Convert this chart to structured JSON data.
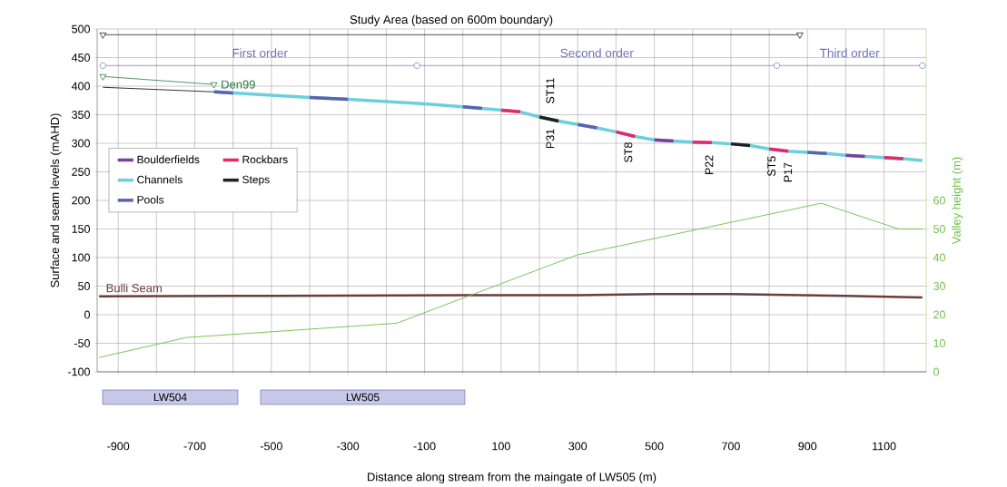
{
  "chart_data": {
    "type": "line",
    "xlabel": "Distance along stream from the maingate of LW505 (m)",
    "ylabel": "Surface and seam levels (mAHD)",
    "y2label": "Valley height (m)",
    "x": [
      -650,
      -600,
      -500,
      -400,
      -300,
      -200,
      -100,
      0,
      50,
      100,
      150,
      200,
      250,
      300,
      350,
      400,
      450,
      500,
      550,
      600,
      650,
      700,
      750,
      800,
      850,
      900,
      950,
      1000,
      1050,
      1100,
      1150,
      1200
    ],
    "series": [
      {
        "name": "Boulderfields",
        "color": "#7b3f9e",
        "values": [
          null,
          null,
          null,
          null,
          null,
          null,
          null,
          null,
          null,
          null,
          null,
          null,
          null,
          null,
          null,
          null,
          null,
          306,
          304,
          null,
          null,
          null,
          null,
          null,
          null,
          null,
          null,
          279,
          277,
          null,
          null,
          null
        ]
      },
      {
        "name": "Rockbars",
        "color": "#e8266b",
        "values": [
          null,
          null,
          null,
          null,
          null,
          null,
          null,
          null,
          null,
          358,
          355,
          null,
          null,
          null,
          null,
          320,
          312,
          null,
          null,
          302,
          301,
          null,
          null,
          290,
          286,
          null,
          null,
          null,
          null,
          275,
          273,
          null
        ]
      },
      {
        "name": "Channels",
        "color": "#6ccfdc",
        "values": [
          390,
          388,
          384,
          380,
          377,
          373,
          369,
          364,
          361,
          358,
          355,
          346,
          339,
          333,
          327,
          320,
          312,
          306,
          304,
          302,
          301,
          299,
          296,
          290,
          286,
          284,
          282,
          279,
          277,
          275,
          273,
          270
        ]
      },
      {
        "name": "Steps",
        "color": "#231f20",
        "values": [
          null,
          null,
          null,
          null,
          null,
          null,
          null,
          null,
          null,
          null,
          null,
          346,
          339,
          null,
          null,
          null,
          null,
          null,
          null,
          null,
          null,
          299,
          296,
          null,
          null,
          null,
          null,
          null,
          null,
          null,
          null,
          null
        ]
      },
      {
        "name": "Pools",
        "color": "#5b63b0",
        "values": [
          390,
          388,
          null,
          380,
          377,
          null,
          null,
          364,
          361,
          null,
          null,
          null,
          null,
          333,
          327,
          null,
          null,
          null,
          null,
          null,
          null,
          null,
          null,
          null,
          null,
          284,
          282,
          null,
          null,
          null,
          null,
          null
        ]
      },
      {
        "color": "#000000",
        "x": [
          -940,
          -650
        ],
        "values": [
          398,
          390
        ]
      },
      {
        "name": "Den99",
        "color": "#2e7a3e",
        "x": [
          -940,
          -650
        ],
        "values": [
          417,
          403
        ],
        "marker": "triangle"
      },
      {
        "name": "Bulli Seam",
        "color": "#6e3b3b",
        "x": [
          -950,
          -500,
          0,
          300,
          500,
          700,
          1000,
          1200
        ],
        "values": [
          32,
          33,
          34,
          34,
          36,
          36,
          33,
          30
        ]
      },
      {
        "color": "#6cbe45",
        "axis": "y2",
        "x": [
          -950,
          -722,
          -173,
          300,
          936,
          1138,
          1200
        ],
        "values": [
          5,
          12,
          17,
          41,
          59,
          50,
          50
        ]
      },
      {
        "color": "#000000",
        "x": [
          -940,
          880
        ],
        "values": [
          490,
          490
        ],
        "marker": "triangle"
      },
      {
        "color": "#6b6fb8",
        "x": [
          -940,
          -120,
          820,
          1200
        ],
        "values": [
          436,
          436,
          436,
          436
        ],
        "marker": "circle"
      }
    ],
    "xlim": [
      -955,
      1210
    ],
    "ylim": [
      -100,
      500
    ],
    "y2lim": [
      0,
      120
    ],
    "xticks": [
      -900,
      {
        "value": -800,
        "label": null
      },
      -700,
      {
        "value": -600,
        "label": null
      },
      -500,
      {
        "value": -400,
        "label": null
      },
      -300,
      {
        "value": -200,
        "label": null
      },
      -100,
      {
        "value": 0,
        "label": null
      },
      100,
      {
        "value": 200,
        "label": null
      },
      300,
      {
        "value": 400,
        "label": null
      },
      500,
      {
        "value": 600,
        "label": null
      },
      700,
      {
        "value": 800,
        "label": null
      },
      900,
      {
        "value": 1000,
        "label": null
      },
      1100
    ],
    "yticks": [
      -100,
      -50,
      0,
      50,
      100,
      150,
      200,
      250,
      300,
      350,
      400,
      450,
      500
    ],
    "y2ticks": [
      0,
      10,
      20,
      30,
      40,
      50,
      60
    ],
    "annotations": [
      "Study Area (based on 600m boundary)",
      "First order",
      "Second order",
      "Third order",
      "ST11",
      "P31",
      "ST8",
      "P22",
      "ST5",
      "P17",
      "LW504",
      "LW505"
    ],
    "grid": true,
    "legend": "left"
  }
}
